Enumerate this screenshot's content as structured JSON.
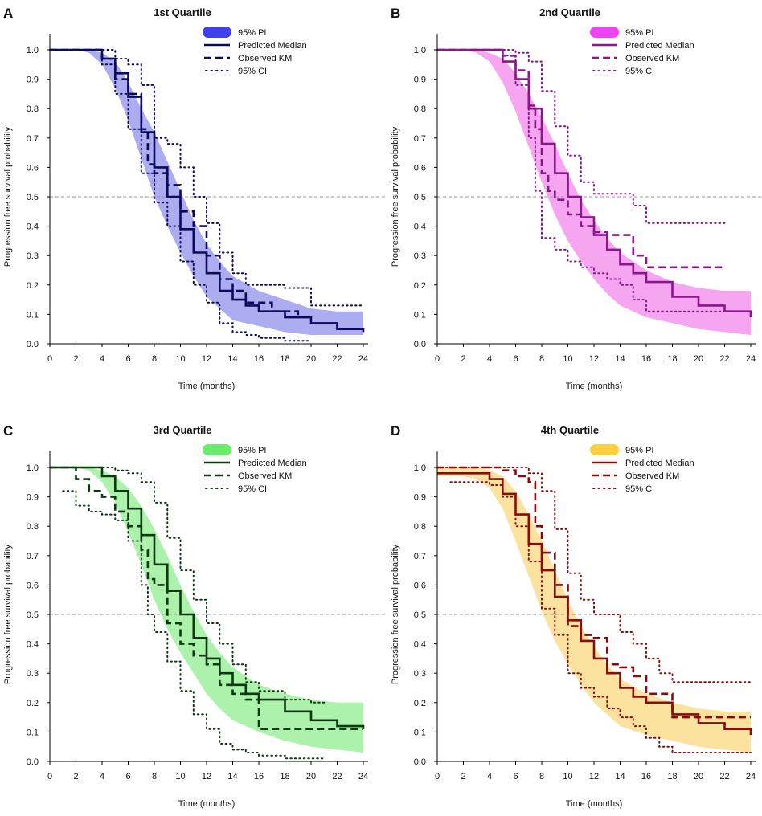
{
  "figure": {
    "shared": {
      "xlabel": "Time (months)",
      "ylabel": "Progression free survival probability",
      "xlim": [
        0,
        24
      ],
      "ylim": [
        0,
        1.0
      ],
      "xticks": [
        "0",
        "2",
        "4",
        "6",
        "8",
        "10",
        "12",
        "14",
        "16",
        "18",
        "20",
        "22",
        "24"
      ],
      "yticks": [
        "0.0",
        "0.1",
        "0.2",
        "0.3",
        "0.4",
        "0.5",
        "0.6",
        "0.7",
        "0.8",
        "0.9",
        "1.0"
      ],
      "reference_line_y": 0.5
    }
  },
  "chart_data": [
    {
      "panel_letter": "A",
      "title": "1st Quartile",
      "type": "line",
      "color": "#0b0b5e",
      "band_color": "#a8a8f0",
      "legend_swatch_color": "#4040ee",
      "legend": [
        "95% PI",
        "Predicted Median",
        "Observed KM",
        "95% CI"
      ],
      "series": [
        {
          "name": "95% PI upper",
          "x": [
            0,
            3,
            4,
            5,
            6,
            7,
            8,
            9,
            10,
            11,
            12,
            13,
            14,
            16,
            18,
            20,
            22,
            24
          ],
          "y": [
            1.0,
            1.0,
            0.99,
            0.96,
            0.89,
            0.8,
            0.72,
            0.62,
            0.52,
            0.42,
            0.34,
            0.28,
            0.23,
            0.18,
            0.15,
            0.12,
            0.11,
            0.11
          ]
        },
        {
          "name": "95% PI lower",
          "x": [
            0,
            2,
            3,
            4,
            5,
            6,
            7,
            8,
            9,
            10,
            11,
            12,
            13,
            14,
            16,
            18,
            20,
            22,
            24
          ],
          "y": [
            1.0,
            1.0,
            0.99,
            0.95,
            0.87,
            0.76,
            0.63,
            0.5,
            0.4,
            0.31,
            0.23,
            0.16,
            0.12,
            0.08,
            0.06,
            0.04,
            0.03,
            0.03,
            0.03
          ]
        },
        {
          "name": "Predicted Median",
          "x": [
            0,
            3,
            4,
            5,
            6,
            7,
            8,
            9,
            10,
            11,
            12,
            13,
            14,
            15,
            16,
            18,
            20,
            22,
            24
          ],
          "y": [
            1.0,
            1.0,
            0.97,
            0.92,
            0.84,
            0.72,
            0.6,
            0.5,
            0.39,
            0.31,
            0.24,
            0.18,
            0.15,
            0.13,
            0.11,
            0.09,
            0.07,
            0.05,
            0.04
          ]
        },
        {
          "name": "Observed KM",
          "x": [
            0,
            3,
            4,
            5,
            6,
            7,
            7.5,
            8,
            9,
            10,
            11,
            12,
            13,
            14,
            15,
            17,
            18,
            19
          ],
          "y": [
            1.0,
            1.0,
            0.97,
            0.9,
            0.85,
            0.73,
            0.61,
            0.58,
            0.54,
            0.45,
            0.4,
            0.3,
            0.22,
            0.18,
            0.14,
            0.11,
            0.11,
            0.09
          ]
        },
        {
          "name": "95% CI upper",
          "x": [
            0,
            4,
            5,
            6,
            7,
            8,
            9,
            10,
            11,
            12,
            13,
            14,
            15,
            16,
            18,
            20,
            22,
            24
          ],
          "y": [
            1.0,
            1.0,
            0.97,
            0.95,
            0.88,
            0.7,
            0.68,
            0.6,
            0.5,
            0.41,
            0.31,
            0.24,
            0.2,
            0.2,
            0.19,
            0.13,
            0.13,
            0.13
          ]
        },
        {
          "name": "95% CI lower",
          "x": [
            0,
            3,
            4,
            5,
            6,
            7,
            8,
            9,
            10,
            11,
            12,
            13,
            14,
            15,
            16,
            18,
            20
          ],
          "y": [
            1.0,
            1.0,
            0.95,
            0.85,
            0.73,
            0.58,
            0.48,
            0.4,
            0.28,
            0.2,
            0.14,
            0.07,
            0.04,
            0.03,
            0.02,
            0.01,
            0.01
          ]
        }
      ]
    },
    {
      "panel_letter": "B",
      "title": "2nd Quartile",
      "type": "line",
      "color": "#8b158b",
      "band_color": "#f5a0f0",
      "legend_swatch_color": "#ee44ee",
      "legend": [
        "95% PI",
        "Predicted Median",
        "Observed KM",
        "95% CI"
      ],
      "series": [
        {
          "name": "95% PI upper",
          "x": [
            0,
            3,
            4,
            5,
            6,
            7,
            8,
            9,
            10,
            11,
            12,
            13,
            14,
            16,
            18,
            20,
            22,
            24
          ],
          "y": [
            1.0,
            1.0,
            0.99,
            0.97,
            0.92,
            0.85,
            0.77,
            0.68,
            0.58,
            0.49,
            0.42,
            0.36,
            0.31,
            0.25,
            0.21,
            0.19,
            0.18,
            0.18
          ]
        },
        {
          "name": "95% PI lower",
          "x": [
            0,
            2,
            3,
            4,
            5,
            6,
            7,
            8,
            9,
            10,
            11,
            12,
            13,
            14,
            16,
            18,
            20,
            22,
            24
          ],
          "y": [
            1.0,
            1.0,
            0.99,
            0.96,
            0.89,
            0.79,
            0.67,
            0.55,
            0.44,
            0.35,
            0.28,
            0.22,
            0.17,
            0.13,
            0.09,
            0.07,
            0.05,
            0.04,
            0.03
          ]
        },
        {
          "name": "Predicted Median",
          "x": [
            0,
            4,
            5,
            6,
            7,
            8,
            9,
            10,
            11,
            12,
            13,
            14,
            15,
            16,
            18,
            20,
            22,
            24
          ],
          "y": [
            1.0,
            1.0,
            0.96,
            0.9,
            0.8,
            0.68,
            0.58,
            0.5,
            0.43,
            0.37,
            0.32,
            0.27,
            0.24,
            0.21,
            0.16,
            0.13,
            0.11,
            0.09
          ]
        },
        {
          "name": "Observed KM",
          "x": [
            0,
            4,
            5,
            6,
            7,
            7.5,
            8,
            8.5,
            9,
            10,
            11,
            12,
            13,
            14,
            15,
            16,
            22
          ],
          "y": [
            1.0,
            1.0,
            0.98,
            0.93,
            0.81,
            0.73,
            0.58,
            0.52,
            0.49,
            0.44,
            0.4,
            0.38,
            0.37,
            0.37,
            0.3,
            0.26,
            0.26
          ]
        },
        {
          "name": "95% CI upper",
          "x": [
            0,
            4,
            5,
            6,
            7,
            8,
            9,
            10,
            11,
            12,
            13,
            14,
            15,
            16,
            18,
            20,
            22
          ],
          "y": [
            1.0,
            1.0,
            1.0,
            0.99,
            0.96,
            0.86,
            0.74,
            0.64,
            0.55,
            0.51,
            0.51,
            0.51,
            0.47,
            0.41,
            0.41,
            0.41,
            0.41
          ]
        },
        {
          "name": "95% CI lower",
          "x": [
            0,
            4,
            5,
            6,
            7,
            7.5,
            8,
            9,
            10,
            11,
            12,
            13,
            14,
            15,
            16,
            18,
            20,
            22
          ],
          "y": [
            1.0,
            1.0,
            0.98,
            0.88,
            0.7,
            0.52,
            0.36,
            0.32,
            0.28,
            0.26,
            0.24,
            0.22,
            0.2,
            0.15,
            0.11,
            0.11,
            0.11,
            0.11
          ]
        }
      ]
    },
    {
      "panel_letter": "C",
      "title": "3rd Quartile",
      "type": "line",
      "color": "#0c3a0c",
      "band_color": "#a8f0a8",
      "legend_swatch_color": "#6cec6c",
      "legend": [
        "95% PI",
        "Predicted Median",
        "Observed KM",
        "95% CI"
      ],
      "series": [
        {
          "name": "95% PI upper",
          "x": [
            0,
            3,
            4,
            5,
            6,
            7,
            8,
            9,
            10,
            11,
            12,
            13,
            14,
            16,
            18,
            20,
            22,
            24
          ],
          "y": [
            1.0,
            1.0,
            0.99,
            0.97,
            0.93,
            0.87,
            0.79,
            0.7,
            0.6,
            0.51,
            0.43,
            0.37,
            0.32,
            0.26,
            0.23,
            0.21,
            0.2,
            0.2
          ]
        },
        {
          "name": "95% PI lower",
          "x": [
            0,
            2,
            3,
            4,
            5,
            6,
            7,
            8,
            9,
            10,
            11,
            12,
            13,
            14,
            16,
            18,
            20,
            22,
            24
          ],
          "y": [
            1.0,
            1.0,
            0.99,
            0.95,
            0.88,
            0.78,
            0.67,
            0.55,
            0.45,
            0.37,
            0.3,
            0.23,
            0.18,
            0.14,
            0.1,
            0.07,
            0.05,
            0.04,
            0.03
          ]
        },
        {
          "name": "Predicted Median",
          "x": [
            0,
            3,
            4,
            5,
            6,
            7,
            8,
            9,
            10,
            11,
            12,
            13,
            14,
            15,
            16,
            18,
            20,
            22,
            24
          ],
          "y": [
            1.0,
            1.0,
            0.97,
            0.92,
            0.86,
            0.77,
            0.67,
            0.58,
            0.5,
            0.42,
            0.35,
            0.3,
            0.26,
            0.23,
            0.21,
            0.17,
            0.14,
            0.12,
            0.11
          ]
        },
        {
          "name": "Observed KM",
          "x": [
            0,
            1,
            2,
            3,
            4,
            5,
            6,
            7,
            7.5,
            8,
            9,
            10,
            11,
            12,
            13,
            14,
            15,
            16,
            24
          ],
          "y": [
            1.0,
            1.0,
            0.96,
            0.92,
            0.9,
            0.85,
            0.8,
            0.72,
            0.62,
            0.6,
            0.47,
            0.4,
            0.36,
            0.33,
            0.26,
            0.23,
            0.21,
            0.11,
            0.11
          ]
        },
        {
          "name": "95% CI upper",
          "x": [
            0,
            4,
            5,
            6,
            7,
            8,
            9,
            10,
            11,
            12,
            13,
            14,
            15,
            16,
            18,
            20,
            21
          ],
          "y": [
            1.0,
            1.0,
            0.99,
            0.98,
            0.95,
            0.88,
            0.76,
            0.65,
            0.55,
            0.47,
            0.4,
            0.33,
            0.27,
            0.24,
            0.21,
            0.2,
            0.2
          ]
        },
        {
          "name": "95% CI lower",
          "x": [
            1,
            2,
            3,
            4,
            5,
            6,
            7,
            7.5,
            8,
            9,
            10,
            11,
            12,
            13,
            14,
            15,
            16,
            18,
            20,
            21
          ],
          "y": [
            0.92,
            0.87,
            0.85,
            0.84,
            0.82,
            0.75,
            0.6,
            0.5,
            0.44,
            0.34,
            0.24,
            0.16,
            0.11,
            0.06,
            0.04,
            0.03,
            0.02,
            0.01,
            0.01,
            0.01
          ]
        }
      ]
    },
    {
      "panel_letter": "D",
      "title": "4th Quartile",
      "type": "line",
      "color": "#8b0a0a",
      "band_color": "#fbe19a",
      "legend_swatch_color": "#fad040",
      "legend": [
        "95% PI",
        "Predicted Median",
        "Observed KM",
        "95% CI"
      ],
      "series": [
        {
          "name": "95% PI upper",
          "x": [
            0,
            3,
            4,
            5,
            6,
            7,
            8,
            9,
            10,
            11,
            12,
            13,
            14,
            16,
            18,
            20,
            22,
            24
          ],
          "y": [
            1.0,
            1.0,
            0.99,
            0.97,
            0.92,
            0.84,
            0.75,
            0.65,
            0.55,
            0.46,
            0.39,
            0.33,
            0.28,
            0.23,
            0.2,
            0.18,
            0.17,
            0.17
          ]
        },
        {
          "name": "95% PI lower",
          "x": [
            0,
            2,
            3,
            4,
            5,
            6,
            7,
            8,
            9,
            10,
            11,
            12,
            13,
            14,
            16,
            18,
            20,
            22,
            24
          ],
          "y": [
            0.97,
            0.97,
            0.96,
            0.93,
            0.86,
            0.75,
            0.63,
            0.51,
            0.41,
            0.33,
            0.26,
            0.2,
            0.16,
            0.12,
            0.09,
            0.07,
            0.05,
            0.04,
            0.03
          ]
        },
        {
          "name": "Predicted Median",
          "x": [
            0,
            3,
            4,
            5,
            6,
            7,
            8,
            9,
            10,
            11,
            12,
            13,
            14,
            15,
            16,
            18,
            20,
            22,
            24
          ],
          "y": [
            0.98,
            0.98,
            0.96,
            0.91,
            0.84,
            0.74,
            0.65,
            0.56,
            0.48,
            0.41,
            0.35,
            0.3,
            0.25,
            0.22,
            0.2,
            0.16,
            0.13,
            0.11,
            0.09
          ]
        },
        {
          "name": "Observed KM",
          "x": [
            0,
            4,
            5,
            6,
            7,
            7.5,
            8,
            9,
            10,
            11,
            12,
            13,
            14,
            15,
            16,
            18,
            20,
            22,
            24
          ],
          "y": [
            1.0,
            1.0,
            0.99,
            0.97,
            0.95,
            0.8,
            0.71,
            0.6,
            0.46,
            0.43,
            0.42,
            0.33,
            0.32,
            0.29,
            0.23,
            0.15,
            0.15,
            0.15,
            0.15
          ]
        },
        {
          "name": "95% CI upper",
          "x": [
            0,
            5,
            6,
            7,
            8,
            9,
            10,
            11,
            12,
            13,
            14,
            15,
            16,
            17,
            18,
            20,
            22,
            24
          ],
          "y": [
            1.0,
            1.0,
            1.0,
            0.98,
            0.92,
            0.79,
            0.64,
            0.55,
            0.5,
            0.5,
            0.44,
            0.4,
            0.35,
            0.3,
            0.27,
            0.27,
            0.27,
            0.27
          ]
        },
        {
          "name": "95% CI lower",
          "x": [
            1,
            3,
            4,
            5,
            6,
            7,
            8,
            9,
            10,
            11,
            12,
            13,
            14,
            15,
            16,
            17,
            18,
            20,
            22,
            24
          ],
          "y": [
            0.95,
            0.95,
            0.94,
            0.9,
            0.8,
            0.68,
            0.52,
            0.43,
            0.3,
            0.25,
            0.22,
            0.18,
            0.15,
            0.12,
            0.08,
            0.05,
            0.03,
            0.03,
            0.03,
            0.03
          ]
        }
      ]
    }
  ]
}
